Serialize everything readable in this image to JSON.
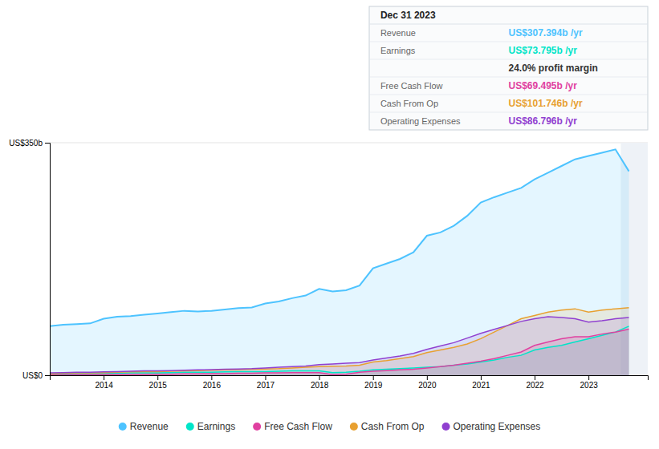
{
  "chart_data": {
    "type": "area",
    "x": [
      2013.0,
      2013.25,
      2013.5,
      2013.75,
      2014.0,
      2014.25,
      2014.5,
      2014.75,
      2015.0,
      2015.25,
      2015.5,
      2015.75,
      2016.0,
      2016.25,
      2016.5,
      2016.75,
      2017.0,
      2017.25,
      2017.5,
      2017.75,
      2018.0,
      2018.25,
      2018.5,
      2018.75,
      2019.0,
      2019.25,
      2019.5,
      2019.75,
      2020.0,
      2020.25,
      2020.5,
      2020.75,
      2021.0,
      2021.25,
      2021.5,
      2021.75,
      2022.0,
      2022.25,
      2022.5,
      2022.75,
      2023.0,
      2023.25,
      2023.5,
      2023.75
    ],
    "xlim": [
      2013.0,
      2024.1
    ],
    "xticks": [
      2014,
      2015,
      2016,
      2017,
      2018,
      2019,
      2020,
      2021,
      2022,
      2023
    ],
    "ylim": [
      0,
      350
    ],
    "yticks": [
      {
        "value": 0,
        "label": "US$0"
      },
      {
        "value": 350,
        "label": "US$350b"
      }
    ],
    "grid": true,
    "legend": "bottom",
    "highlight_range": [
      2023.6,
      2024.1
    ],
    "series": [
      {
        "name": "Revenue",
        "color": "#4dc3ff",
        "values": [
          74,
          76,
          77,
          78,
          85,
          88,
          89,
          91,
          93,
          95,
          97,
          96,
          97,
          99,
          101,
          102,
          108,
          111,
          116,
          120,
          130,
          126,
          128,
          135,
          161,
          168,
          175,
          185,
          210,
          215,
          225,
          240,
          260,
          268,
          275,
          282,
          295,
          305,
          315,
          325,
          330,
          335,
          340,
          307
        ]
      },
      {
        "name": "Earnings",
        "color": "#00e5c8",
        "values": [
          2,
          2.2,
          2.5,
          2.5,
          2.5,
          3,
          3.5,
          3.5,
          3.5,
          4,
          4.5,
          4.5,
          4.5,
          5,
          5.5,
          5.5,
          5.5,
          6,
          6.5,
          6.5,
          6.5,
          4,
          4.5,
          6,
          8,
          9,
          10,
          11,
          12,
          13,
          15,
          17,
          20,
          23,
          27,
          30,
          38,
          42,
          45,
          50,
          55,
          60,
          65,
          73.795
        ]
      },
      {
        "name": "Free Cash Flow",
        "color": "#e040a0",
        "values": [
          0.5,
          0.5,
          0.8,
          0.8,
          1,
          1,
          1.2,
          1.2,
          1.5,
          1.5,
          2,
          2,
          2.5,
          2.5,
          3,
          3,
          3.5,
          3.5,
          4,
          4,
          4,
          1,
          1.5,
          4.5,
          6,
          7,
          8,
          9,
          11,
          13,
          15,
          18,
          21,
          25,
          30,
          35,
          45,
          50,
          55,
          58,
          58,
          62,
          65,
          69.495
        ]
      },
      {
        "name": "Cash From Op",
        "color": "#e8a030",
        "values": [
          2.5,
          3,
          3.5,
          3.5,
          4,
          4.5,
          5,
          5.5,
          5.5,
          6,
          6.5,
          7,
          7.5,
          8,
          8.5,
          9,
          9.5,
          10,
          11,
          12,
          13,
          13.5,
          14,
          15,
          20,
          22,
          25,
          28,
          34,
          38,
          42,
          47,
          55,
          65,
          75,
          85,
          90,
          95,
          98,
          100,
          95,
          98,
          100,
          101.746
        ]
      },
      {
        "name": "Operating Expenses",
        "color": "#9040d0",
        "values": [
          3.5,
          4,
          4.5,
          4.5,
          5,
          5.5,
          6,
          6.5,
          6.5,
          7,
          7.5,
          8,
          8.5,
          9,
          9.5,
          10,
          11,
          12,
          13,
          14,
          16,
          17,
          18,
          19,
          23,
          26,
          29,
          33,
          39,
          44,
          49,
          56,
          63,
          69,
          75,
          81,
          85,
          88,
          87,
          85,
          80,
          82,
          85,
          86.796
        ]
      }
    ],
    "annotations": [
      {
        "text": "Dec 31 2023"
      },
      {
        "label": "Revenue",
        "text": "US$307.394b /yr",
        "color": "#4dc3ff"
      },
      {
        "label": "Earnings",
        "text": "US$73.795b /yr",
        "color": "#00e5c8"
      },
      {
        "text": "24.0% profit margin"
      },
      {
        "label": "Free Cash Flow",
        "text": "US$69.495b /yr",
        "color": "#e040a0"
      },
      {
        "label": "Cash From Op",
        "text": "US$101.746b /yr",
        "color": "#e8a030"
      },
      {
        "label": "Operating Expenses",
        "text": "US$86.796b /yr",
        "color": "#9040d0"
      }
    ]
  }
}
